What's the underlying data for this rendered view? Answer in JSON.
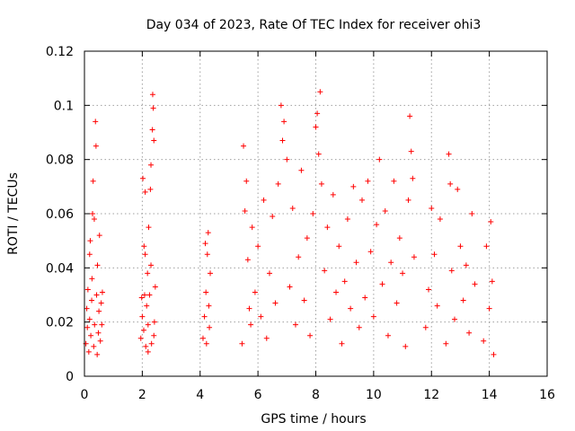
{
  "chart_data": {
    "type": "scatter",
    "title": "Day 034 of 2023, Rate Of TEC Index for receiver ohi3",
    "xlabel": "GPS time / hours",
    "ylabel": "ROTI / TECUs",
    "xlim": [
      0,
      16
    ],
    "ylim": [
      0,
      0.12
    ],
    "xticks": [
      "0",
      "2",
      "4",
      "6",
      "8",
      "10",
      "12",
      "14",
      "16"
    ],
    "yticks": [
      "0",
      "0.02",
      "0.04",
      "0.06",
      "0.08",
      "0.1",
      "0.12"
    ],
    "grid": true,
    "marker": "plus",
    "color": "#ff0000",
    "series": [
      {
        "points": [
          [
            0.05,
            0.012
          ],
          [
            0.08,
            0.025
          ],
          [
            0.1,
            0.018
          ],
          [
            0.12,
            0.032
          ],
          [
            0.15,
            0.009
          ],
          [
            0.18,
            0.021
          ],
          [
            0.2,
            0.05
          ],
          [
            0.22,
            0.015
          ],
          [
            0.25,
            0.028
          ],
          [
            0.28,
            0.06
          ],
          [
            0.3,
            0.072
          ],
          [
            0.32,
            0.011
          ],
          [
            0.35,
            0.019
          ],
          [
            0.38,
            0.094
          ],
          [
            0.4,
            0.085
          ],
          [
            0.42,
            0.03
          ],
          [
            0.45,
            0.041
          ],
          [
            0.48,
            0.016
          ],
          [
            0.5,
            0.024
          ],
          [
            0.52,
            0.052
          ],
          [
            0.55,
            0.013
          ],
          [
            0.58,
            0.027
          ],
          [
            0.6,
            0.019
          ],
          [
            0.62,
            0.031
          ],
          [
            0.18,
            0.045
          ],
          [
            0.26,
            0.036
          ],
          [
            0.34,
            0.058
          ],
          [
            0.44,
            0.008
          ],
          [
            1.95,
            0.014
          ],
          [
            2.0,
            0.022
          ],
          [
            2.02,
            0.073
          ],
          [
            2.05,
            0.017
          ],
          [
            2.08,
            0.03
          ],
          [
            2.1,
            0.045
          ],
          [
            2.12,
            0.011
          ],
          [
            2.15,
            0.026
          ],
          [
            2.18,
            0.038
          ],
          [
            2.2,
            0.019
          ],
          [
            2.22,
            0.055
          ],
          [
            2.25,
            0.03
          ],
          [
            2.28,
            0.069
          ],
          [
            2.3,
            0.078
          ],
          [
            2.32,
            0.012
          ],
          [
            2.35,
            0.091
          ],
          [
            2.36,
            0.104
          ],
          [
            2.38,
            0.099
          ],
          [
            2.4,
            0.087
          ],
          [
            2.42,
            0.02
          ],
          [
            2.45,
            0.033
          ],
          [
            2.1,
            0.068
          ],
          [
            2.2,
            0.009
          ],
          [
            2.3,
            0.041
          ],
          [
            2.4,
            0.015
          ],
          [
            1.98,
            0.029
          ],
          [
            2.06,
            0.048
          ],
          [
            4.1,
            0.014
          ],
          [
            4.15,
            0.022
          ],
          [
            4.2,
            0.031
          ],
          [
            4.25,
            0.045
          ],
          [
            4.28,
            0.053
          ],
          [
            4.3,
            0.026
          ],
          [
            4.32,
            0.018
          ],
          [
            4.35,
            0.038
          ],
          [
            4.22,
            0.012
          ],
          [
            4.18,
            0.049
          ],
          [
            5.45,
            0.012
          ],
          [
            5.5,
            0.085
          ],
          [
            5.55,
            0.061
          ],
          [
            5.6,
            0.072
          ],
          [
            5.65,
            0.043
          ],
          [
            5.7,
            0.025
          ],
          [
            5.75,
            0.019
          ],
          [
            5.8,
            0.055
          ],
          [
            5.9,
            0.031
          ],
          [
            6.0,
            0.048
          ],
          [
            6.1,
            0.022
          ],
          [
            6.2,
            0.065
          ],
          [
            6.3,
            0.014
          ],
          [
            6.4,
            0.038
          ],
          [
            6.5,
            0.059
          ],
          [
            6.6,
            0.027
          ],
          [
            6.7,
            0.071
          ],
          [
            6.8,
            0.1
          ],
          [
            6.85,
            0.087
          ],
          [
            6.9,
            0.094
          ],
          [
            7.0,
            0.08
          ],
          [
            7.1,
            0.033
          ],
          [
            7.2,
            0.062
          ],
          [
            7.3,
            0.019
          ],
          [
            7.4,
            0.044
          ],
          [
            7.5,
            0.076
          ],
          [
            7.6,
            0.028
          ],
          [
            7.7,
            0.051
          ],
          [
            7.8,
            0.015
          ],
          [
            7.9,
            0.06
          ],
          [
            8.0,
            0.092
          ],
          [
            8.05,
            0.097
          ],
          [
            8.1,
            0.082
          ],
          [
            8.15,
            0.105
          ],
          [
            8.2,
            0.071
          ],
          [
            8.3,
            0.039
          ],
          [
            8.4,
            0.055
          ],
          [
            8.5,
            0.021
          ],
          [
            8.6,
            0.067
          ],
          [
            8.7,
            0.031
          ],
          [
            8.8,
            0.048
          ],
          [
            8.9,
            0.012
          ],
          [
            9.0,
            0.035
          ],
          [
            9.1,
            0.058
          ],
          [
            9.2,
            0.025
          ],
          [
            9.3,
            0.07
          ],
          [
            9.4,
            0.042
          ],
          [
            9.5,
            0.018
          ],
          [
            9.6,
            0.065
          ],
          [
            9.7,
            0.029
          ],
          [
            9.8,
            0.072
          ],
          [
            9.9,
            0.046
          ],
          [
            10.0,
            0.022
          ],
          [
            10.1,
            0.056
          ],
          [
            10.2,
            0.08
          ],
          [
            10.3,
            0.034
          ],
          [
            10.4,
            0.061
          ],
          [
            10.5,
            0.015
          ],
          [
            10.6,
            0.042
          ],
          [
            10.7,
            0.072
          ],
          [
            10.8,
            0.027
          ],
          [
            10.9,
            0.051
          ],
          [
            11.0,
            0.038
          ],
          [
            11.1,
            0.011
          ],
          [
            11.2,
            0.065
          ],
          [
            11.25,
            0.096
          ],
          [
            11.3,
            0.083
          ],
          [
            11.35,
            0.073
          ],
          [
            11.4,
            0.044
          ],
          [
            11.8,
            0.018
          ],
          [
            11.9,
            0.032
          ],
          [
            12.0,
            0.062
          ],
          [
            12.1,
            0.045
          ],
          [
            12.2,
            0.026
          ],
          [
            12.3,
            0.058
          ],
          [
            12.5,
            0.012
          ],
          [
            12.6,
            0.082
          ],
          [
            12.65,
            0.071
          ],
          [
            12.7,
            0.039
          ],
          [
            12.8,
            0.021
          ],
          [
            12.9,
            0.069
          ],
          [
            13.0,
            0.048
          ],
          [
            13.1,
            0.028
          ],
          [
            13.2,
            0.041
          ],
          [
            13.3,
            0.016
          ],
          [
            13.4,
            0.06
          ],
          [
            13.5,
            0.034
          ],
          [
            13.8,
            0.013
          ],
          [
            13.9,
            0.048
          ],
          [
            14.0,
            0.025
          ],
          [
            14.05,
            0.057
          ],
          [
            14.1,
            0.035
          ],
          [
            14.15,
            0.008
          ]
        ]
      }
    ]
  }
}
